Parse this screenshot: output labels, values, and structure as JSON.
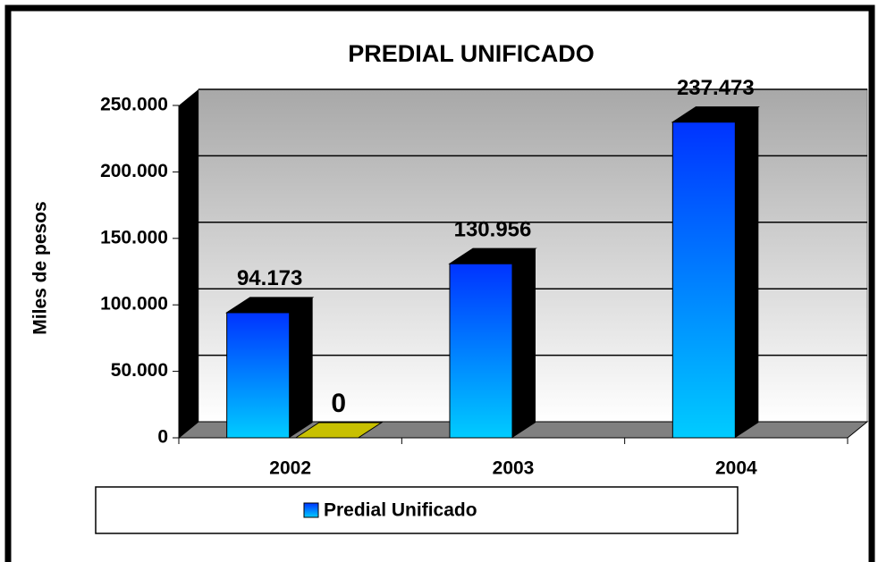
{
  "chart_data": {
    "type": "bar3d",
    "title": "PREDIAL UNIFICADO",
    "y_label": "Miles de pesos",
    "categories": [
      "2002",
      "2003",
      "2004"
    ],
    "series": [
      {
        "name": "Predial Unificado",
        "color": "#0040ff",
        "values": [
          94173,
          130956,
          237473
        ],
        "value_labels": [
          "94.173",
          "130.956",
          "237.473"
        ]
      },
      {
        "color": "#c8c000",
        "values": [
          0,
          null,
          null
        ]
      }
    ],
    "ylim": [
      0,
      250000
    ],
    "yticks": [
      0,
      {
        "value": 50000,
        "label": "50.000"
      },
      {
        "value": 100000,
        "label": "100.000"
      },
      {
        "value": 150000,
        "label": "150.000"
      },
      {
        "value": 200000,
        "label": "200.000"
      },
      {
        "value": 250000,
        "label": "250.000"
      }
    ],
    "grid": true,
    "legend": "bottom"
  }
}
